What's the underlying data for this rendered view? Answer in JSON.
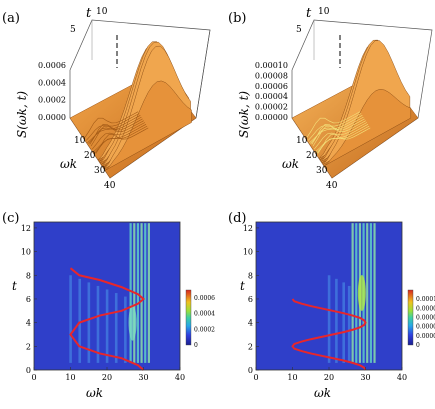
{
  "panels": [
    {
      "label": "(a)",
      "type": "surface3d",
      "axis_t_label": "t",
      "axis_w_label": "ωk",
      "axis_z_label": "S(ωk, t)",
      "t_ticks": [
        "5",
        "10"
      ],
      "w_ticks": [
        "10",
        "20",
        "30",
        "40"
      ],
      "z_ticks": [
        "0.0000",
        "0.0002",
        "0.0004",
        "0.0006"
      ]
    },
    {
      "label": "(b)",
      "type": "surface3d",
      "axis_t_label": "t",
      "axis_w_label": "ωk",
      "axis_z_label": "S(ωk, t)",
      "t_ticks": [
        "5",
        "10"
      ],
      "w_ticks": [
        "10",
        "20",
        "30",
        "40"
      ],
      "z_ticks": [
        "0.00000",
        "0.00002",
        "0.00004",
        "0.00006",
        "0.00008",
        "0.00010"
      ]
    },
    {
      "label": "(c)",
      "type": "density",
      "xlabel": "ωk",
      "ylabel": "t",
      "x_ticks": [
        "0",
        "10",
        "20",
        "30",
        "40"
      ],
      "y_ticks": [
        "0",
        "2",
        "4",
        "6",
        "8",
        "10",
        "12"
      ],
      "colorbar_ticks": [
        "0",
        "0.0002",
        "0.0004",
        "0.0006"
      ]
    },
    {
      "label": "(d)",
      "type": "density",
      "xlabel": "ωk",
      "ylabel": "t",
      "x_ticks": [
        "0",
        "10",
        "20",
        "30",
        "40"
      ],
      "y_ticks": [
        "0",
        "2",
        "4",
        "6",
        "8",
        "10",
        "12"
      ],
      "colorbar_ticks": [
        "0",
        "0.00002",
        "0.00004",
        "0.00006",
        "0.00008",
        "0.00010"
      ]
    }
  ],
  "chart_data": [
    {
      "type": "heatmap",
      "panel": "(a)",
      "x_range": [
        0,
        40
      ],
      "y_range": [
        0,
        10
      ],
      "z_range": [
        0,
        0.0007
      ],
      "ridges_omega": [
        28,
        29,
        30,
        31,
        32,
        33,
        34,
        35
      ],
      "colors": {
        "surface": "#e08a2c",
        "highlight": "#f6b25a"
      }
    },
    {
      "type": "heatmap",
      "panel": "(b)",
      "x_range": [
        0,
        40
      ],
      "y_range": [
        0,
        10
      ],
      "z_range": [
        0,
        0.00012
      ],
      "ridges_omega": [
        27,
        28,
        29,
        30,
        31,
        32
      ],
      "colors": {
        "surface": "#e08a2c",
        "highlight": "#f7e36a"
      }
    },
    {
      "type": "heatmap",
      "panel": "(c)",
      "x_range": [
        0,
        40
      ],
      "y_range": [
        0,
        12.5
      ],
      "series": [
        {
          "x": [
            30,
            28.5,
            24,
            18,
            12.4,
            10,
            12.4,
            18,
            24,
            28.5,
            30,
            28.5,
            24,
            18,
            12.4,
            10
          ],
          "y": [
            0,
            0.4,
            1.0,
            1.4,
            2.0,
            3.0,
            4.0,
            4.6,
            5.0,
            5.6,
            6.0,
            6.4,
            7.0,
            7.6,
            8.0,
            8.6
          ],
          "color": "#e8262a"
        }
      ],
      "ridges_omega": [
        10,
        12.5,
        15,
        17.5,
        20,
        22.5,
        25,
        26.5,
        27.5,
        28.5,
        29.5,
        30.5,
        31.5
      ],
      "colorbar_range": [
        0,
        0.0007
      ]
    },
    {
      "type": "heatmap",
      "panel": "(d)",
      "x_range": [
        0,
        40
      ],
      "y_range": [
        0,
        12.5
      ],
      "series": [
        {
          "x": [
            30,
            29.6,
            28.5,
            26.5,
            24,
            21,
            18,
            15,
            12.5,
            10.5,
            10,
            10.5,
            12.5,
            15,
            18,
            21,
            24,
            26.5,
            28.5,
            29.6,
            30,
            29.6,
            28.5,
            26.5,
            24,
            21,
            18,
            15,
            12.5,
            10.5,
            10
          ],
          "y": [
            0,
            0.2,
            0.4,
            0.6,
            0.8,
            1.0,
            1.2,
            1.4,
            1.6,
            1.8,
            2.0,
            2.2,
            2.4,
            2.6,
            2.8,
            3.0,
            3.2,
            3.4,
            3.6,
            3.8,
            4.0,
            4.2,
            4.4,
            4.6,
            4.8,
            5.0,
            5.2,
            5.4,
            5.6,
            5.8,
            6.0
          ],
          "color": "#e8262a"
        }
      ],
      "ridges_omega": [
        20,
        22,
        24,
        25.5,
        26.5,
        27.5,
        28.5,
        29.5,
        30.5,
        31.5,
        32.5
      ],
      "colorbar_range": [
        0,
        0.00012
      ]
    }
  ]
}
